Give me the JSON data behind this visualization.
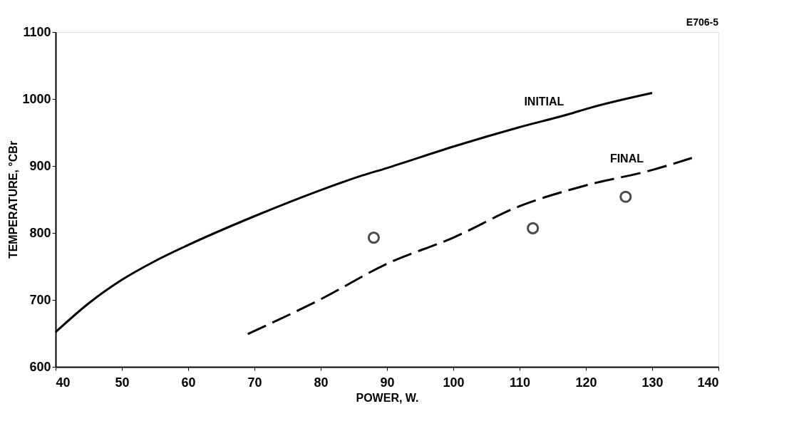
{
  "chart_data": {
    "type": "line",
    "xlabel": "POWER, W.",
    "ylabel": "TEMPERATURE, °CBr",
    "xlim": [
      40,
      140
    ],
    "xticks": [
      40,
      50,
      60,
      70,
      80,
      90,
      100,
      110,
      120,
      130,
      140
    ],
    "ylim": [
      600,
      1100
    ],
    "yticks": [
      600,
      700,
      800,
      900,
      1000,
      1100
    ],
    "grid": false,
    "annotations": [
      "E706-5"
    ],
    "series": [
      {
        "name": "INITIAL",
        "line_style": "solid",
        "color": "#000000",
        "x": [
          40,
          45,
          50,
          55,
          60,
          70,
          80,
          86,
          90,
          100,
          110,
          118,
          120,
          130
        ],
        "values": [
          652,
          695,
          730,
          758,
          782,
          825,
          864,
          885,
          897,
          929,
          958,
          979,
          985,
          1009
        ]
      },
      {
        "name": "FINAL",
        "line_style": "dashed",
        "color": "#000000",
        "x": [
          69,
          80,
          90,
          100,
          110,
          120,
          130,
          136
        ],
        "values": [
          649,
          701,
          754,
          793,
          840,
          871,
          894,
          912
        ]
      },
      {
        "type": "scatter",
        "marker": "circle",
        "color": "#000000",
        "x": [
          88,
          112,
          126
        ],
        "values": [
          793,
          807,
          854
        ]
      }
    ]
  }
}
